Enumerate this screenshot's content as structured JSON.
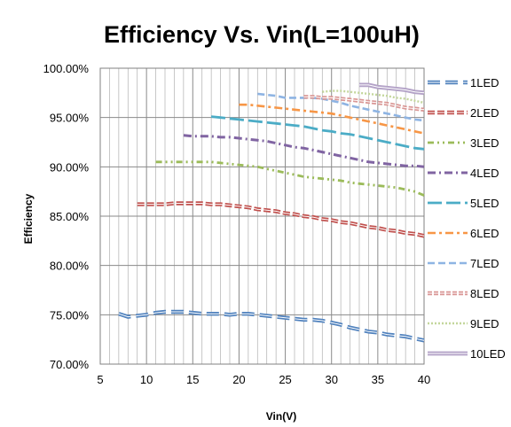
{
  "chart_data": {
    "type": "line",
    "title": "Efficiency Vs. Vin(L=100uH)",
    "xlabel": "Vin(V)",
    "ylabel": "Efficiency",
    "xlim": [
      5,
      40
    ],
    "ylim": [
      70,
      100
    ],
    "x_ticks": [
      5,
      10,
      15,
      20,
      25,
      30,
      35,
      40
    ],
    "y_ticks": [
      70,
      75,
      80,
      85,
      90,
      95,
      100
    ],
    "y_tick_labels": [
      "70.00%",
      "75.00%",
      "80.00%",
      "85.00%",
      "90.00%",
      "95.00%",
      "100.00%"
    ],
    "grid": true,
    "legend_position": "right",
    "series": [
      {
        "name": "1LED",
        "color": "#4F81BD",
        "x": [
          7,
          8,
          9,
          10,
          11,
          12,
          13,
          14,
          15,
          16,
          17,
          18,
          19,
          20,
          21,
          22,
          23,
          24,
          25,
          26,
          27,
          28,
          29,
          30,
          31,
          32,
          33,
          34,
          35,
          36,
          37,
          38,
          39,
          40
        ],
        "y": [
          75.1,
          74.8,
          74.9,
          75.0,
          75.2,
          75.3,
          75.3,
          75.3,
          75.2,
          75.1,
          75.1,
          75.1,
          75.0,
          75.1,
          75.1,
          75.0,
          74.9,
          74.8,
          74.7,
          74.6,
          74.5,
          74.5,
          74.4,
          74.2,
          74.0,
          73.7,
          73.5,
          73.3,
          73.2,
          73.0,
          72.9,
          72.8,
          72.6,
          72.4
        ]
      },
      {
        "name": "2LED",
        "color": "#C0504D",
        "x": [
          9,
          10,
          11,
          12,
          13,
          14,
          15,
          16,
          17,
          18,
          19,
          20,
          21,
          22,
          23,
          24,
          25,
          26,
          27,
          28,
          29,
          30,
          31,
          32,
          33,
          34,
          35,
          36,
          37,
          38,
          39,
          40
        ],
        "y": [
          86.2,
          86.2,
          86.2,
          86.2,
          86.3,
          86.3,
          86.3,
          86.3,
          86.2,
          86.2,
          86.1,
          86.0,
          85.9,
          85.7,
          85.6,
          85.5,
          85.3,
          85.2,
          85.0,
          84.9,
          84.7,
          84.6,
          84.4,
          84.3,
          84.1,
          83.9,
          83.8,
          83.6,
          83.5,
          83.3,
          83.2,
          83.0
        ]
      },
      {
        "name": "3LED",
        "color": "#9BBB59",
        "x": [
          11,
          12,
          13,
          14,
          15,
          16,
          17,
          18,
          19,
          20,
          21,
          22,
          23,
          24,
          25,
          26,
          27,
          28,
          29,
          30,
          31,
          32,
          33,
          34,
          35,
          36,
          37,
          38,
          39,
          40
        ],
        "y": [
          90.5,
          90.5,
          90.5,
          90.5,
          90.5,
          90.5,
          90.5,
          90.4,
          90.3,
          90.2,
          90.1,
          90.0,
          89.8,
          89.6,
          89.4,
          89.2,
          89.0,
          88.9,
          88.8,
          88.7,
          88.6,
          88.4,
          88.3,
          88.2,
          88.1,
          88.0,
          87.9,
          87.7,
          87.5,
          87.1
        ]
      },
      {
        "name": "4LED",
        "color": "#8064A2",
        "x": [
          14,
          15,
          16,
          17,
          18,
          19,
          20,
          21,
          22,
          23,
          24,
          25,
          26,
          27,
          28,
          29,
          30,
          31,
          32,
          33,
          34,
          35,
          36,
          37,
          38,
          39,
          40
        ],
        "y": [
          93.2,
          93.1,
          93.1,
          93.1,
          93.0,
          93.0,
          92.9,
          92.8,
          92.7,
          92.6,
          92.4,
          92.2,
          92.0,
          91.9,
          91.7,
          91.5,
          91.3,
          91.1,
          90.9,
          90.7,
          90.5,
          90.4,
          90.3,
          90.2,
          90.1,
          90.1,
          90.0
        ]
      },
      {
        "name": "5LED",
        "color": "#4BACC6",
        "x": [
          17,
          18,
          19,
          20,
          21,
          22,
          23,
          24,
          25,
          26,
          27,
          28,
          29,
          30,
          31,
          32,
          33,
          34,
          35,
          36,
          37,
          38,
          39,
          40
        ],
        "y": [
          95.1,
          95.0,
          94.9,
          94.8,
          94.7,
          94.6,
          94.5,
          94.4,
          94.3,
          94.2,
          94.1,
          93.9,
          93.7,
          93.6,
          93.4,
          93.3,
          93.1,
          92.9,
          92.7,
          92.5,
          92.3,
          92.1,
          91.9,
          91.8
        ]
      },
      {
        "name": "6LED",
        "color": "#F79646",
        "x": [
          20,
          21,
          22,
          23,
          24,
          25,
          26,
          27,
          28,
          29,
          30,
          31,
          32,
          33,
          34,
          35,
          36,
          37,
          38,
          39,
          40
        ],
        "y": [
          96.3,
          96.3,
          96.2,
          96.1,
          96.0,
          95.9,
          95.8,
          95.7,
          95.6,
          95.5,
          95.4,
          95.2,
          95.0,
          94.8,
          94.6,
          94.4,
          94.2,
          94.0,
          93.8,
          93.6,
          93.4
        ]
      },
      {
        "name": "7LED",
        "color": "#8EB4E3",
        "x": [
          22,
          23,
          24,
          25,
          26,
          27,
          28,
          29,
          30,
          31,
          32,
          33,
          34,
          35,
          36,
          37,
          38,
          39,
          40
        ],
        "y": [
          97.4,
          97.3,
          97.2,
          97.0,
          97.0,
          97.0,
          97.0,
          96.9,
          96.7,
          96.5,
          96.2,
          96.0,
          95.8,
          95.6,
          95.4,
          95.2,
          95.0,
          94.8,
          94.7
        ]
      },
      {
        "name": "8LED",
        "color": "#D99694",
        "x": [
          27,
          28,
          29,
          30,
          31,
          32,
          33,
          34,
          35,
          36,
          37,
          38,
          39,
          40
        ],
        "y": [
          97.1,
          97.1,
          97.0,
          97.0,
          96.9,
          96.8,
          96.7,
          96.6,
          96.5,
          96.4,
          96.2,
          96.0,
          95.9,
          95.8
        ]
      },
      {
        "name": "9LED",
        "color": "#C3D69B",
        "x": [
          29,
          30,
          31,
          32,
          33,
          34,
          35,
          36,
          37,
          38,
          39,
          40
        ],
        "y": [
          97.6,
          97.7,
          97.7,
          97.6,
          97.5,
          97.4,
          97.3,
          97.2,
          97.0,
          96.9,
          96.7,
          96.5
        ]
      },
      {
        "name": "10LED",
        "color": "#B3A2C7",
        "x": [
          33,
          34,
          35,
          36,
          37,
          38,
          39,
          40
        ],
        "y": [
          98.3,
          98.3,
          98.1,
          98.0,
          97.9,
          97.8,
          97.6,
          97.5
        ]
      }
    ]
  }
}
